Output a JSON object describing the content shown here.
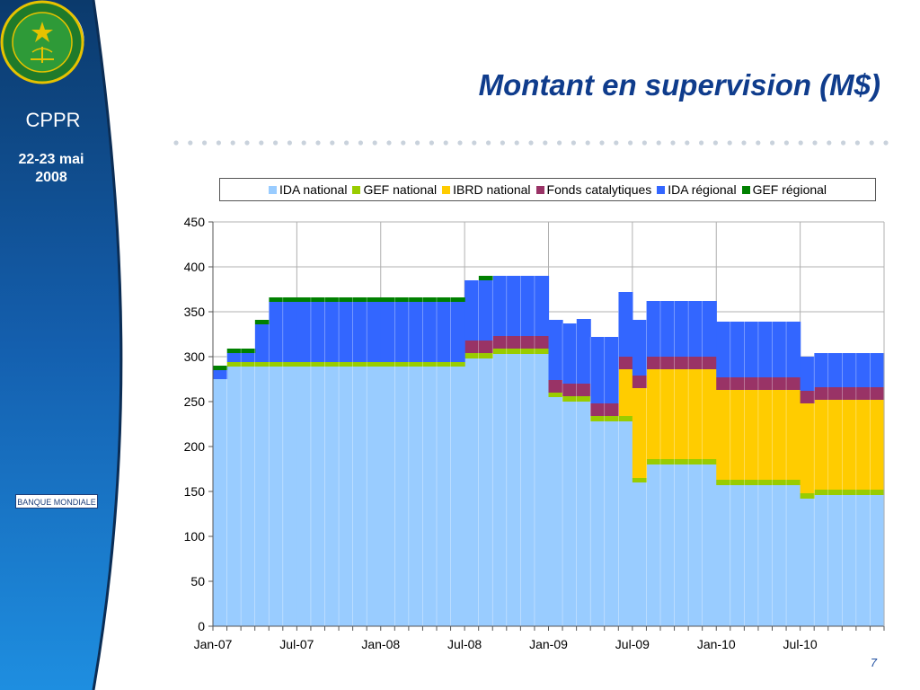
{
  "sidebar": {
    "title": "CPPR",
    "date_line1": "22-23 mai",
    "date_line2": "2008",
    "world_bank_label": "BANQUE MONDIALE",
    "colors": {
      "dark": "#0b3a6c",
      "light": "#1e8ee0"
    }
  },
  "slide": {
    "title": "Montant en supervision (M$)",
    "page_number": "7",
    "title_color": "#0f3c8c"
  },
  "chart_data": {
    "type": "area",
    "stacked": true,
    "step": true,
    "title": "",
    "xlabel": "",
    "ylabel": "",
    "ylim": [
      0,
      450
    ],
    "yticks": [
      0,
      50,
      100,
      150,
      200,
      250,
      300,
      350,
      400,
      450
    ],
    "grid": true,
    "legend_position": "top",
    "x_tick_labels": [
      "Jan-07",
      "Jul-07",
      "Jan-08",
      "Jul-08",
      "Jan-09",
      "Jul-09",
      "Jan-10",
      "Jul-10"
    ],
    "x": [
      "Jan-07",
      "Feb-07",
      "Mar-07",
      "Apr-07",
      "May-07",
      "Jun-07",
      "Jul-07",
      "Aug-07",
      "Sep-07",
      "Oct-07",
      "Nov-07",
      "Dec-07",
      "Jan-08",
      "Feb-08",
      "Mar-08",
      "Apr-08",
      "May-08",
      "Jun-08",
      "Jul-08",
      "Aug-08",
      "Sep-08",
      "Oct-08",
      "Nov-08",
      "Dec-08",
      "Jan-09",
      "Feb-09",
      "Mar-09",
      "Apr-09",
      "May-09",
      "Jun-09",
      "Jul-09",
      "Aug-09",
      "Sep-09",
      "Oct-09",
      "Nov-09",
      "Dec-09",
      "Jan-10",
      "Feb-10",
      "Mar-10",
      "Apr-10",
      "May-10",
      "Jun-10",
      "Jul-10",
      "Aug-10",
      "Sep-10",
      "Oct-10",
      "Nov-10",
      "Dec-10"
    ],
    "series": [
      {
        "name": "IDA national",
        "color": "#99ccff",
        "values": [
          275,
          289,
          289,
          289,
          289,
          289,
          289,
          289,
          289,
          289,
          289,
          289,
          289,
          289,
          289,
          289,
          289,
          289,
          298,
          298,
          303,
          303,
          303,
          303,
          255,
          250,
          250,
          228,
          228,
          228,
          160,
          180,
          180,
          180,
          180,
          180,
          157,
          157,
          157,
          157,
          157,
          157,
          142,
          146,
          146,
          146,
          146,
          146
        ]
      },
      {
        "name": "GEF national",
        "color": "#99cc00",
        "values": [
          0,
          5,
          5,
          5,
          5,
          5,
          5,
          5,
          5,
          5,
          5,
          5,
          5,
          5,
          5,
          5,
          5,
          5,
          6,
          6,
          6,
          6,
          6,
          6,
          5,
          6,
          6,
          6,
          6,
          6,
          5,
          6,
          6,
          6,
          6,
          6,
          6,
          6,
          6,
          6,
          6,
          6,
          6,
          6,
          6,
          6,
          6,
          6
        ]
      },
      {
        "name": "IBRD national",
        "color": "#ffcc00",
        "values": [
          0,
          0,
          0,
          0,
          0,
          0,
          0,
          0,
          0,
          0,
          0,
          0,
          0,
          0,
          0,
          0,
          0,
          0,
          0,
          0,
          0,
          0,
          0,
          0,
          0,
          0,
          0,
          0,
          0,
          52,
          100,
          100,
          100,
          100,
          100,
          100,
          100,
          100,
          100,
          100,
          100,
          100,
          100,
          100,
          100,
          100,
          100,
          100
        ]
      },
      {
        "name": "Fonds catalytiques",
        "color": "#993366",
        "values": [
          0,
          0,
          0,
          0,
          0,
          0,
          0,
          0,
          0,
          0,
          0,
          0,
          0,
          0,
          0,
          0,
          0,
          0,
          14,
          14,
          14,
          14,
          14,
          14,
          14,
          14,
          14,
          14,
          14,
          14,
          14,
          14,
          14,
          14,
          14,
          14,
          14,
          14,
          14,
          14,
          14,
          14,
          14,
          14,
          14,
          14,
          14,
          14
        ]
      },
      {
        "name": "IDA régional",
        "color": "#3366ff",
        "values": [
          10,
          10,
          10,
          42,
          67,
          67,
          67,
          67,
          67,
          67,
          67,
          67,
          67,
          67,
          67,
          67,
          67,
          67,
          67,
          67,
          67,
          67,
          67,
          67,
          67,
          67,
          72,
          74,
          74,
          72,
          62,
          62,
          62,
          62,
          62,
          62,
          62,
          62,
          62,
          62,
          62,
          62,
          38,
          38,
          38,
          38,
          38,
          38
        ]
      },
      {
        "name": "GEF régional",
        "color": "#008000",
        "values": [
          5,
          5,
          5,
          5,
          5,
          5,
          5,
          5,
          5,
          5,
          5,
          5,
          5,
          5,
          5,
          5,
          5,
          5,
          0,
          5,
          0,
          0,
          0,
          0,
          0,
          0,
          0,
          0,
          0,
          0,
          0,
          0,
          0,
          0,
          0,
          0,
          0,
          0,
          0,
          0,
          0,
          0,
          0,
          0,
          0,
          0,
          0,
          0
        ]
      }
    ]
  }
}
